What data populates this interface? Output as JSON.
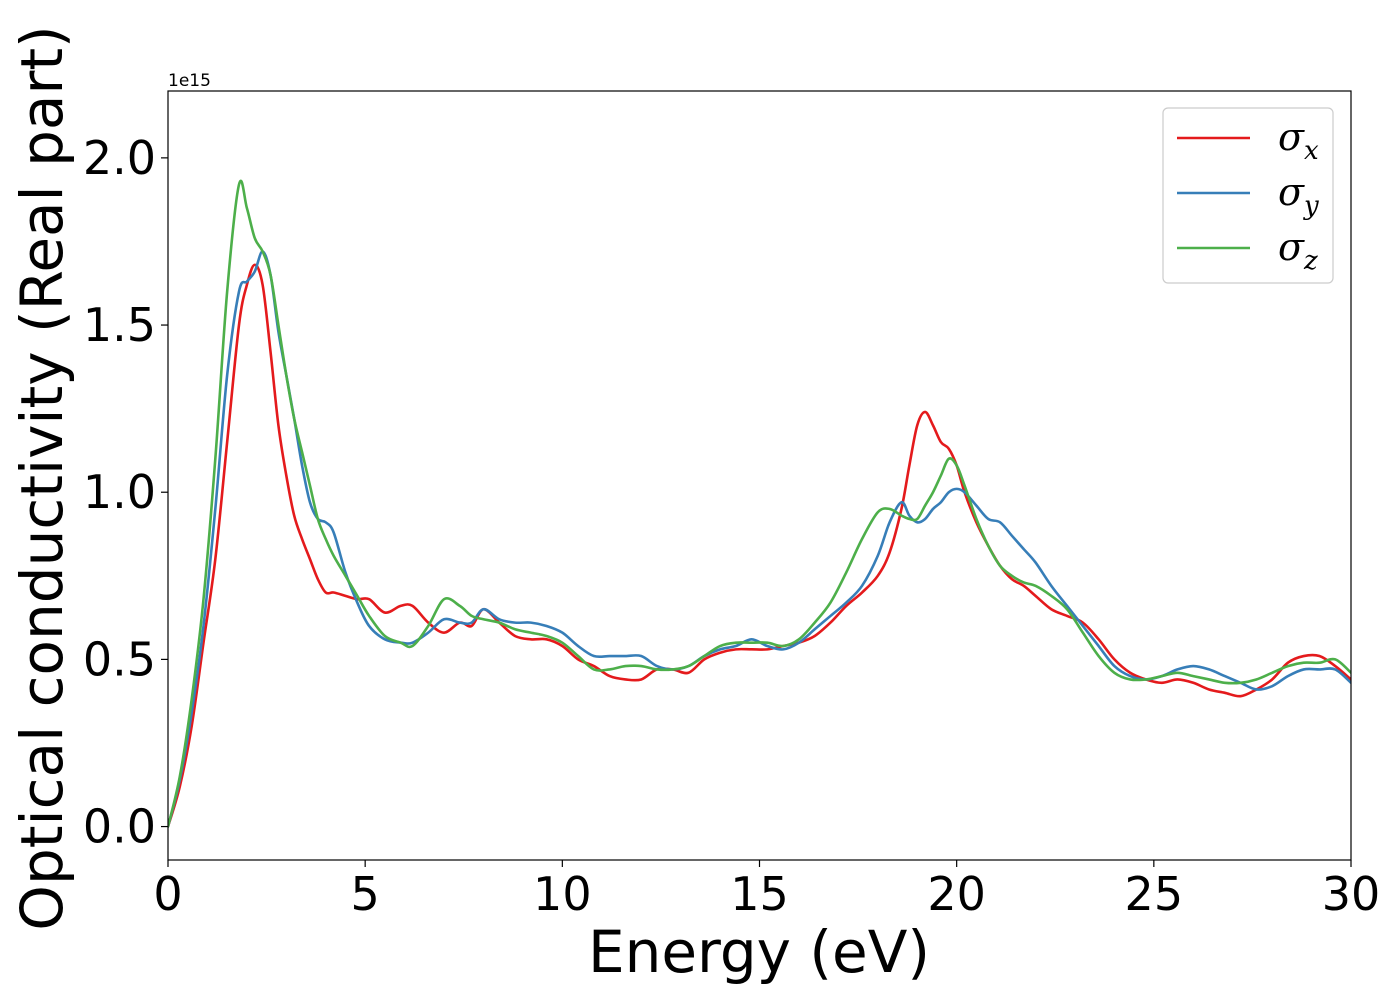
{
  "chart_data": {
    "type": "line",
    "title": "",
    "xlabel": "Energy (eV)",
    "ylabel": "Optical conductivity (Real part)",
    "y_offset_label": "1e15",
    "xlim": [
      0,
      30
    ],
    "ylim": [
      -0.1,
      2.2
    ],
    "x_ticks": [
      0,
      5,
      10,
      15,
      20,
      25,
      30
    ],
    "x_tick_labels": [
      "0",
      "5",
      "10",
      "15",
      "20",
      "25",
      "30"
    ],
    "y_ticks": [
      0.0,
      0.5,
      1.0,
      1.5,
      2.0
    ],
    "y_tick_labels": [
      "0.0",
      "0.5",
      "1.0",
      "1.5",
      "2.0"
    ],
    "grid": false,
    "legend_position": "top-right",
    "series": [
      {
        "name": "σx",
        "name_base": "σ",
        "name_sub": "x",
        "color": "#e41a1c",
        "x": [
          0,
          0.3,
          0.6,
          0.9,
          1.2,
          1.5,
          1.8,
          2.0,
          2.2,
          2.4,
          2.6,
          2.8,
          3.0,
          3.2,
          3.4,
          3.6,
          3.8,
          4.0,
          4.2,
          4.5,
          4.8,
          5.1,
          5.5,
          5.9,
          6.2,
          6.6,
          7.0,
          7.4,
          7.7,
          8.0,
          8.4,
          8.8,
          9.2,
          9.6,
          10.0,
          10.4,
          10.8,
          11.2,
          11.6,
          12.0,
          12.4,
          12.8,
          13.2,
          13.6,
          14.0,
          14.4,
          14.8,
          15.2,
          15.6,
          16.0,
          16.4,
          16.8,
          17.2,
          17.6,
          18.0,
          18.3,
          18.6,
          18.8,
          19.0,
          19.2,
          19.4,
          19.6,
          19.8,
          20.0,
          20.2,
          20.5,
          20.8,
          21.1,
          21.4,
          21.7,
          22.0,
          22.4,
          22.8,
          23.2,
          23.6,
          24.0,
          24.4,
          24.8,
          25.2,
          25.6,
          26.0,
          26.4,
          26.8,
          27.2,
          27.6,
          28.0,
          28.4,
          28.8,
          29.2,
          29.6,
          30.0
        ],
        "values": [
          0.0,
          0.12,
          0.3,
          0.55,
          0.8,
          1.15,
          1.5,
          1.62,
          1.68,
          1.62,
          1.42,
          1.2,
          1.05,
          0.93,
          0.86,
          0.8,
          0.74,
          0.7,
          0.7,
          0.69,
          0.68,
          0.68,
          0.64,
          0.66,
          0.66,
          0.61,
          0.58,
          0.61,
          0.6,
          0.65,
          0.61,
          0.57,
          0.56,
          0.56,
          0.54,
          0.5,
          0.48,
          0.45,
          0.44,
          0.44,
          0.47,
          0.47,
          0.46,
          0.5,
          0.52,
          0.53,
          0.53,
          0.53,
          0.54,
          0.55,
          0.57,
          0.61,
          0.66,
          0.7,
          0.75,
          0.82,
          0.95,
          1.08,
          1.2,
          1.24,
          1.2,
          1.15,
          1.13,
          1.08,
          1.0,
          0.91,
          0.84,
          0.78,
          0.74,
          0.72,
          0.69,
          0.65,
          0.63,
          0.61,
          0.56,
          0.5,
          0.46,
          0.44,
          0.43,
          0.44,
          0.43,
          0.41,
          0.4,
          0.39,
          0.41,
          0.44,
          0.49,
          0.51,
          0.51,
          0.48,
          0.44
        ]
      },
      {
        "name": "σy",
        "name_base": "σ",
        "name_sub": "y",
        "color": "#377eb8",
        "x": [
          0,
          0.3,
          0.6,
          0.9,
          1.2,
          1.5,
          1.8,
          2.0,
          2.2,
          2.4,
          2.6,
          2.8,
          3.0,
          3.2,
          3.4,
          3.6,
          3.8,
          4.0,
          4.2,
          4.5,
          4.8,
          5.1,
          5.5,
          5.9,
          6.2,
          6.6,
          7.0,
          7.4,
          7.7,
          8.0,
          8.4,
          8.8,
          9.2,
          9.6,
          10.0,
          10.4,
          10.8,
          11.2,
          11.6,
          12.0,
          12.4,
          12.8,
          13.2,
          13.6,
          14.0,
          14.4,
          14.8,
          15.2,
          15.6,
          16.0,
          16.4,
          16.8,
          17.2,
          17.6,
          18.0,
          18.3,
          18.6,
          18.8,
          19.0,
          19.2,
          19.4,
          19.6,
          19.8,
          20.0,
          20.2,
          20.5,
          20.8,
          21.1,
          21.4,
          21.7,
          22.0,
          22.4,
          22.8,
          23.2,
          23.6,
          24.0,
          24.4,
          24.8,
          25.2,
          25.6,
          26.0,
          26.4,
          26.8,
          27.2,
          27.6,
          28.0,
          28.4,
          28.8,
          29.2,
          29.6,
          30.0
        ],
        "values": [
          0.0,
          0.14,
          0.34,
          0.6,
          0.95,
          1.35,
          1.6,
          1.63,
          1.66,
          1.72,
          1.65,
          1.48,
          1.35,
          1.22,
          1.08,
          0.97,
          0.92,
          0.91,
          0.88,
          0.76,
          0.67,
          0.6,
          0.56,
          0.55,
          0.55,
          0.58,
          0.62,
          0.61,
          0.61,
          0.65,
          0.62,
          0.61,
          0.61,
          0.6,
          0.58,
          0.54,
          0.51,
          0.51,
          0.51,
          0.51,
          0.48,
          0.47,
          0.48,
          0.51,
          0.53,
          0.54,
          0.56,
          0.54,
          0.53,
          0.55,
          0.59,
          0.63,
          0.67,
          0.72,
          0.81,
          0.91,
          0.97,
          0.93,
          0.91,
          0.92,
          0.95,
          0.97,
          1.0,
          1.01,
          1.0,
          0.96,
          0.92,
          0.91,
          0.87,
          0.83,
          0.79,
          0.72,
          0.66,
          0.6,
          0.54,
          0.48,
          0.45,
          0.44,
          0.45,
          0.47,
          0.48,
          0.47,
          0.45,
          0.43,
          0.41,
          0.42,
          0.45,
          0.47,
          0.47,
          0.47,
          0.43
        ]
      },
      {
        "name": "σz",
        "name_base": "σ",
        "name_sub": "z",
        "color": "#4daf4a",
        "x": [
          0,
          0.3,
          0.6,
          0.9,
          1.2,
          1.5,
          1.8,
          2.0,
          2.2,
          2.4,
          2.6,
          2.8,
          3.0,
          3.2,
          3.4,
          3.6,
          3.8,
          4.0,
          4.2,
          4.5,
          4.8,
          5.1,
          5.5,
          5.9,
          6.2,
          6.6,
          7.0,
          7.4,
          7.7,
          8.0,
          8.4,
          8.8,
          9.2,
          9.6,
          10.0,
          10.4,
          10.8,
          11.2,
          11.6,
          12.0,
          12.4,
          12.8,
          13.2,
          13.6,
          14.0,
          14.4,
          14.8,
          15.2,
          15.6,
          16.0,
          16.4,
          16.8,
          17.2,
          17.6,
          18.0,
          18.3,
          18.6,
          18.8,
          19.0,
          19.2,
          19.4,
          19.6,
          19.8,
          20.0,
          20.2,
          20.5,
          20.8,
          21.1,
          21.4,
          21.7,
          22.0,
          22.4,
          22.8,
          23.2,
          23.6,
          24.0,
          24.4,
          24.8,
          25.2,
          25.6,
          26.0,
          26.4,
          26.8,
          27.2,
          27.6,
          28.0,
          28.4,
          28.8,
          29.2,
          29.6,
          30.0
        ],
        "values": [
          0.0,
          0.15,
          0.38,
          0.68,
          1.1,
          1.6,
          1.92,
          1.85,
          1.76,
          1.72,
          1.65,
          1.5,
          1.35,
          1.22,
          1.12,
          1.02,
          0.92,
          0.86,
          0.81,
          0.75,
          0.69,
          0.63,
          0.57,
          0.55,
          0.54,
          0.6,
          0.68,
          0.66,
          0.63,
          0.62,
          0.61,
          0.59,
          0.58,
          0.57,
          0.55,
          0.51,
          0.47,
          0.47,
          0.48,
          0.48,
          0.47,
          0.47,
          0.48,
          0.51,
          0.54,
          0.55,
          0.55,
          0.55,
          0.54,
          0.56,
          0.61,
          0.67,
          0.76,
          0.86,
          0.94,
          0.95,
          0.93,
          0.92,
          0.92,
          0.96,
          1.0,
          1.05,
          1.1,
          1.08,
          1.02,
          0.92,
          0.84,
          0.78,
          0.75,
          0.73,
          0.72,
          0.69,
          0.65,
          0.58,
          0.51,
          0.46,
          0.44,
          0.44,
          0.45,
          0.46,
          0.45,
          0.44,
          0.43,
          0.43,
          0.44,
          0.46,
          0.48,
          0.49,
          0.49,
          0.5,
          0.46
        ]
      }
    ]
  }
}
